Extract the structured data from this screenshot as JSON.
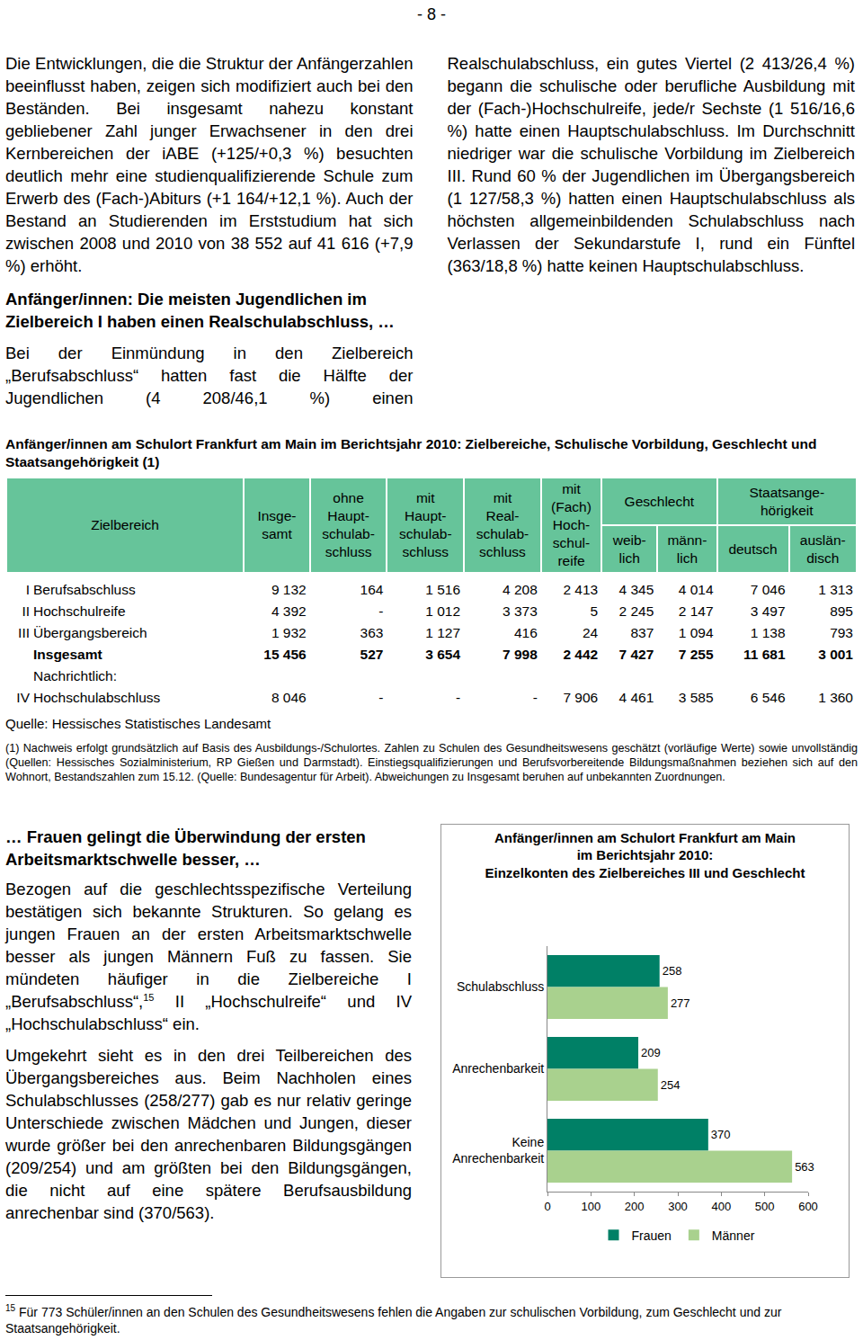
{
  "page_number": "- 8 -",
  "top_text": {
    "paragraph_1": "Die Entwicklungen, die die Struktur der Anfängerzahlen beeinflusst haben, zeigen sich modifiziert auch bei den Beständen. Bei insgesamt nahezu konstant gebliebener Zahl junger Erwachsener in den drei Kernbereichen der iABE (+125/+0,3 %) besuchten deutlich mehr eine studienqualifizierende Schule zum Erwerb des (Fach-)Abiturs (+1 164/+12,1 %). Auch der Bestand an Studierenden im Erststudium hat sich zwischen 2008 und 2010 von 38 552 auf 41 616 (+7,9 %) erhöht.",
    "heading": "Anfänger/innen: Die meisten Jugendlichen im Zielbereich I haben einen Realschulabschluss, …",
    "paragraph_2": "Bei der Einmündung in den Zielbereich „Berufsabschluss“ hatten fast die Hälfte der Jugendlichen (4 208/46,1 %) einen Realschulabschluss, ein gutes Viertel (2 413/26,4 %) begann die schulische oder berufliche Ausbildung mit der (Fach-)Hochschulreife, jede/r Sechste (1 516/16,6 %) hatte einen Hauptschulabschluss. Im Durchschnitt niedriger war die schulische Vorbildung im Zielbereich III. Rund 60 % der Jugendlichen im Übergangsbereich (1 127/58,3 %) hatten einen Hauptschulabschluss als höchsten allgemeinbildenden Schulabschluss nach Verlassen der Sekundarstufe I, rund ein Fünftel (363/18,8 %) hatte keinen Hauptschulabschluss."
  },
  "table": {
    "title": "Anfänger/innen am Schulort Frankfurt am Main im Berichtsjahr 2010: Zielbereiche, Schulische Vorbildung, Geschlecht und Staatsangehörigkeit (1)",
    "header": {
      "first": "Zielbereich",
      "columns": [
        [
          "Insge-",
          "samt"
        ],
        [
          "ohne",
          "Haupt-",
          "schulab-",
          "schluss"
        ],
        [
          "mit",
          "Haupt-",
          "schulab-",
          "schluss"
        ],
        [
          "mit",
          "Real-",
          "schulab-",
          "schluss"
        ],
        [
          "mit",
          "(Fach)",
          "Hoch-",
          "schul-",
          "reife"
        ]
      ],
      "groups": [
        {
          "title": [
            "Geschlecht"
          ],
          "sub": [
            [
              "weib-",
              "lich"
            ],
            [
              "männ-",
              "lich"
            ]
          ]
        },
        {
          "title": [
            "Staatsange-",
            "hörigkeit"
          ],
          "sub": [
            [
              "deutsch"
            ],
            [
              "auslän-",
              "disch"
            ]
          ]
        }
      ]
    },
    "rows": [
      {
        "num": "I",
        "label": "Berufsabschluss",
        "cells": [
          "9 132",
          "164",
          "1 516",
          "4 208",
          "2 413",
          "4 345",
          "4 014",
          "7 046",
          "1 313"
        ]
      },
      {
        "num": "II",
        "label": "Hochschulreife",
        "cells": [
          "4 392",
          "-",
          "1 012",
          "3 373",
          "5",
          "2 245",
          "2 147",
          "3 497",
          "895"
        ]
      },
      {
        "num": "III",
        "label": "Übergangsbereich",
        "cells": [
          "1 932",
          "363",
          "1 127",
          "416",
          "24",
          "837",
          "1 094",
          "1 138",
          "793"
        ]
      }
    ],
    "total": {
      "label": "Insgesamt",
      "cells": [
        "15 456",
        "527",
        "3 654",
        "7 998",
        "2 442",
        "7 427",
        "7 255",
        "11 681",
        "3 001"
      ]
    },
    "memo_label": "Nachrichtlich:",
    "memo_row": {
      "num": "IV",
      "label": "Hochschulabschluss",
      "cells": [
        "8 046",
        "-",
        "-",
        "-",
        "7 906",
        "4 461",
        "3 585",
        "6 546",
        "1 360"
      ]
    },
    "source": "Quelle: Hessisches Statistisches Landesamt",
    "note": "(1) Nachweis erfolgt grundsätzlich auf Basis des Ausbildungs-/Schulortes. Zahlen zu Schulen des Gesundheitswesens geschätzt (vorläufige Werte) sowie unvollständig (Quellen: Hessisches Sozialministerium, RP Gießen und Darmstadt). Einstiegsqualifizierungen und Berufsvorbereitende Bildungsmaßnahmen beziehen sich auf den Wohnort, Bestandszahlen zum 15.12. (Quelle: Bundesagentur für Arbeit). Abweichungen zu Insgesamt beruhen auf unbekannten Zuordnungen."
  },
  "bottom_text": {
    "heading": "… Frauen gelingt die Überwindung der ersten Arbeitsmarktschwelle besser, …",
    "paragraph_1": {
      "before": "Bezogen auf die geschlechtsspezifische Verteilung bestätigen sich bekannte Strukturen. So gelang es jungen Frauen an der ersten Arbeitsmarktschwelle besser als jungen Männern Fuß zu fassen. Sie mündeten häufiger in die Zielbereiche I „Berufsabschluss“,",
      "mark": "15",
      "after": " II „Hochschulreife“ und IV „Hochschulabschluss“ ein."
    },
    "paragraph_2": "Umgekehrt sieht es in den drei Teilbereichen des Übergangsbereiches aus. Beim Nachholen eines Schulabschlusses (258/277) gab es nur relativ geringe Unterschiede zwischen Mädchen und Jungen, dieser wurde größer bei den anrechenbaren Bildungsgängen (209/254) und am größten bei den Bildungsgängen, die nicht auf eine spätere Berufsausbildung anrechenbar sind (370/563)."
  },
  "chart_data": {
    "type": "bar",
    "orientation": "horizontal",
    "title": [
      "Anfänger/innen am Schulort Frankfurt am Main",
      "im Berichtsjahr 2010:",
      "Einzelkonten des Zielbereiches III und Geschlecht"
    ],
    "categories": [
      "Schulabschluss",
      "Anrechenbarkeit",
      "Keine Anrechenbarkeit"
    ],
    "series": [
      {
        "name": "Frauen",
        "color": "#008066",
        "values": [
          258,
          209,
          370
        ]
      },
      {
        "name": "Männer",
        "color": "#a9d18e",
        "values": [
          277,
          254,
          563
        ]
      }
    ],
    "xlim": [
      0,
      600
    ],
    "xticks": [
      0,
      100,
      200,
      300,
      400,
      500,
      600
    ],
    "grid": false,
    "legend": "bottom",
    "data_labels": true
  },
  "footnote": {
    "mark": "15",
    "text": " Für 773 Schüler/innen an den Schulen des Gesundheitswesens fehlen die Angaben zur schulischen Vorbildung, zum Geschlecht und zur Staatsangehörigkeit."
  }
}
